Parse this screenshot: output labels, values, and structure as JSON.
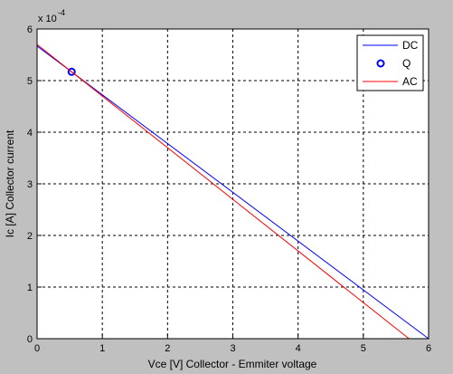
{
  "chart_data": {
    "type": "line",
    "title": "",
    "xlabel": "Vce [V]  Collector - Emmiter voltage",
    "ylabel": "Ic [A]   Collector current",
    "y_exponent_base": "x 10",
    "y_exponent_power": "-4",
    "xlim": [
      0,
      6
    ],
    "ylim": [
      0,
      6
    ],
    "x_ticks": [
      "0",
      "1",
      "2",
      "3",
      "4",
      "5",
      "6"
    ],
    "y_ticks": [
      "0",
      "1",
      "2",
      "3",
      "4",
      "5",
      "6"
    ],
    "grid": true,
    "legend_position": "top-right",
    "colors": {
      "figure_bg": "#c0c0c0",
      "axes_bg": "#ffffff",
      "DC": "#0000ff",
      "Q": "#0000ff",
      "AC": "#ff0000"
    },
    "series": [
      {
        "name": "DC",
        "style": "line",
        "x": [
          0,
          6
        ],
        "y": [
          5.67,
          0
        ]
      },
      {
        "name": "Q",
        "style": "marker",
        "x": [
          0.53
        ],
        "y": [
          5.17
        ]
      },
      {
        "name": "AC",
        "style": "line",
        "x": [
          0,
          5.7
        ],
        "y": [
          5.7,
          0
        ]
      }
    ]
  }
}
